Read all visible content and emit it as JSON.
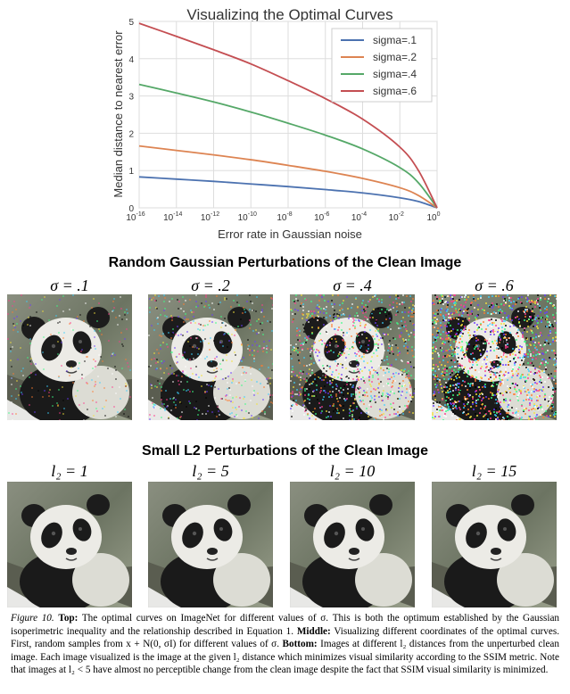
{
  "chart_data": {
    "type": "line",
    "title": "Visualizing the Optimal Curves",
    "xlabel": "Error rate in Gaussian noise",
    "ylabel": "Median distance to nearest error",
    "xscale": "log",
    "xlim_exp": [
      -16,
      0
    ],
    "ylim": [
      0,
      5
    ],
    "x_ticks": [
      "10^-16",
      "10^-14",
      "10^-12",
      "10^-10",
      "10^-8",
      "10^-6",
      "10^-4",
      "10^-2",
      "10^0"
    ],
    "y_ticks": [
      "0",
      "1",
      "2",
      "3",
      "4",
      "5"
    ],
    "grid": true,
    "legend_position": "top-right",
    "series": [
      {
        "name": "sigma=.1",
        "color": "#4c72b0",
        "x": [
          "1e-16",
          "1e-14",
          "1e-12",
          "1e-10",
          "1e-8",
          "1e-6",
          "1e-4",
          "1e-2",
          "1e-1",
          "1"
        ],
        "y": [
          0.83,
          0.77,
          0.71,
          0.64,
          0.57,
          0.49,
          0.4,
          0.27,
          0.17,
          0.0
        ]
      },
      {
        "name": "sigma=.2",
        "color": "#dd8452",
        "x": [
          "1e-16",
          "1e-14",
          "1e-12",
          "1e-10",
          "1e-8",
          "1e-6",
          "1e-4",
          "1e-2",
          "1e-1",
          "1"
        ],
        "y": [
          1.66,
          1.54,
          1.42,
          1.29,
          1.14,
          0.98,
          0.79,
          0.54,
          0.33,
          0.0
        ]
      },
      {
        "name": "sigma=.4",
        "color": "#55a868",
        "x": [
          "1e-16",
          "1e-14",
          "1e-12",
          "1e-10",
          "1e-8",
          "1e-6",
          "1e-4",
          "1e-2",
          "1e-1",
          "1"
        ],
        "y": [
          3.31,
          3.08,
          2.84,
          2.57,
          2.27,
          1.95,
          1.58,
          1.08,
          0.67,
          0.0
        ]
      },
      {
        "name": "sigma=.6",
        "color": "#c44e52",
        "x": [
          "1e-16",
          "1e-14",
          "1e-12",
          "1e-10",
          "1e-8",
          "1e-6",
          "1e-4",
          "1e-2",
          "1e-1",
          "1"
        ],
        "y": [
          4.95,
          4.6,
          4.24,
          3.86,
          3.41,
          2.93,
          2.38,
          1.63,
          1.0,
          0.0
        ]
      }
    ]
  },
  "middle": {
    "title": "Random Gaussian Perturbations of the Clean Image",
    "panels": [
      {
        "label": "σ = .1",
        "noise": 0.1
      },
      {
        "label": "σ = .2",
        "noise": 0.2
      },
      {
        "label": "σ = .4",
        "noise": 0.4
      },
      {
        "label": "σ = .6",
        "noise": 0.6
      }
    ]
  },
  "bottom": {
    "title": "Small L2 Perturbations of the Clean Image",
    "panels": [
      {
        "label": "l₂ = 1"
      },
      {
        "label": "l₂ = 5"
      },
      {
        "label": "l₂ = 10"
      },
      {
        "label": "l₂ = 15"
      }
    ]
  },
  "caption": {
    "figure_label": "Figure 10.",
    "top_label": "Top:",
    "top_text": " The optimal curves on ImageNet for different values of σ. This is both the optimum established by the Gaussian isoperimetric inequality and the relationship described in Equation 1. ",
    "middle_label": "Middle:",
    "middle_text": " Visualizing different coordinates of the optimal curves. First, random samples from x + N(0, σI) for different values of σ. ",
    "bottom_label": "Bottom:",
    "bottom_text": " Images at different l₂ distances from the unperturbed clean image. Each image visualized is the image at the given l₂ distance which minimizes visual similarity according to the SSIM metric. Note that images at l₂ < 5 have almost no perceptible change from the clean image despite the fact that SSIM visual similarity is minimized."
  }
}
